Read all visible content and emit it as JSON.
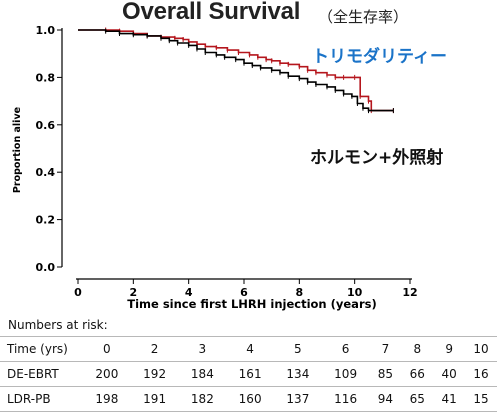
{
  "title": {
    "main": "Overall Survival",
    "sub": "（全生存率）"
  },
  "annotations": {
    "red_curve_label": "トリモダリティー",
    "black_curve_label": "ホルモン+外照射"
  },
  "colors": {
    "series_red": "#b5161d",
    "series_black": "#000000",
    "annotation_blue": "#1a73c8"
  },
  "chart_data": {
    "type": "line",
    "xlabel": "Time since first LHRH injection (years)",
    "ylabel": "Proportion alive",
    "xlim": [
      0,
      12
    ],
    "ylim": [
      0,
      1
    ],
    "xticks": [
      0,
      2,
      4,
      6,
      8,
      10,
      12
    ],
    "yticks": [
      0.0,
      0.2,
      0.4,
      0.6,
      0.8,
      1.0
    ],
    "ytick_labels": [
      "0.0",
      "0.2",
      "0.4",
      "0.6",
      "0.8",
      "1.0"
    ],
    "grid": false,
    "series": [
      {
        "color": "#b5161d",
        "points": [
          [
            0,
            1.0
          ],
          [
            1.0,
            1.0
          ],
          [
            1.5,
            0.995
          ],
          [
            2.0,
            0.985
          ],
          [
            2.5,
            0.975
          ],
          [
            3.0,
            0.97
          ],
          [
            3.5,
            0.965
          ],
          [
            3.8,
            0.96
          ],
          [
            4.0,
            0.95
          ],
          [
            4.3,
            0.94
          ],
          [
            4.6,
            0.93
          ],
          [
            5.0,
            0.925
          ],
          [
            5.4,
            0.915
          ],
          [
            5.8,
            0.905
          ],
          [
            6.2,
            0.895
          ],
          [
            6.5,
            0.885
          ],
          [
            6.8,
            0.875
          ],
          [
            7.0,
            0.87
          ],
          [
            7.3,
            0.86
          ],
          [
            7.6,
            0.855
          ],
          [
            8.0,
            0.845
          ],
          [
            8.3,
            0.83
          ],
          [
            8.6,
            0.82
          ],
          [
            9.0,
            0.81
          ],
          [
            9.3,
            0.8
          ],
          [
            9.6,
            0.8
          ],
          [
            10.0,
            0.8
          ],
          [
            10.2,
            0.72
          ],
          [
            10.5,
            0.7
          ],
          [
            10.6,
            0.66
          ],
          [
            11.4,
            0.66
          ]
        ]
      },
      {
        "color": "#000000",
        "points": [
          [
            0,
            1.0
          ],
          [
            1.0,
            0.995
          ],
          [
            1.5,
            0.985
          ],
          [
            2.0,
            0.98
          ],
          [
            2.5,
            0.975
          ],
          [
            3.0,
            0.965
          ],
          [
            3.3,
            0.955
          ],
          [
            3.6,
            0.945
          ],
          [
            4.0,
            0.935
          ],
          [
            4.3,
            0.92
          ],
          [
            4.6,
            0.905
          ],
          [
            5.0,
            0.895
          ],
          [
            5.3,
            0.885
          ],
          [
            5.7,
            0.875
          ],
          [
            6.0,
            0.86
          ],
          [
            6.3,
            0.85
          ],
          [
            6.6,
            0.84
          ],
          [
            7.0,
            0.83
          ],
          [
            7.3,
            0.82
          ],
          [
            7.6,
            0.805
          ],
          [
            8.0,
            0.795
          ],
          [
            8.3,
            0.78
          ],
          [
            8.6,
            0.77
          ],
          [
            9.0,
            0.76
          ],
          [
            9.3,
            0.745
          ],
          [
            9.6,
            0.73
          ],
          [
            9.9,
            0.72
          ],
          [
            10.1,
            0.69
          ],
          [
            10.3,
            0.67
          ],
          [
            10.5,
            0.66
          ],
          [
            11.4,
            0.66
          ]
        ]
      }
    ]
  },
  "risk_table": {
    "heading": "Numbers at risk:",
    "time_label": "Time (yrs)",
    "times": [
      "0",
      "2",
      "3",
      "4",
      "5",
      "6",
      "7",
      "8",
      "9",
      "10"
    ],
    "rows": [
      {
        "label": "DE-EBRT",
        "values": [
          "200",
          "192",
          "184",
          "161",
          "134",
          "109",
          "85",
          "66",
          "40",
          "16"
        ]
      },
      {
        "label": "LDR-PB",
        "values": [
          "198",
          "191",
          "182",
          "160",
          "137",
          "116",
          "94",
          "65",
          "41",
          "15"
        ]
      }
    ]
  }
}
